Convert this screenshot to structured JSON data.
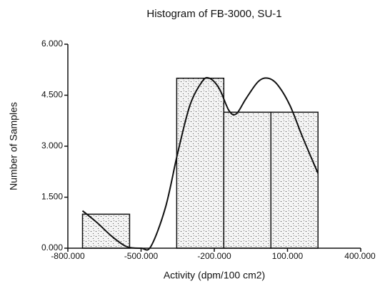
{
  "chart_data": {
    "type": "histogram",
    "title": "Histogram of FB-3000, SU-1",
    "x_label": "Activity (dpm/100 cm2)",
    "y_label": "Number of Samples",
    "bins": [
      -740,
      -547,
      -354,
      -161,
      32,
      225
    ],
    "counts": [
      1,
      0,
      5,
      4,
      4
    ],
    "color": "#e6e6e6",
    "curve": {
      "x": [
        -740,
        -680,
        -620,
        -560,
        -500,
        -460,
        -400,
        -350,
        -300,
        -250,
        -220,
        -180,
        -140,
        -110,
        -70,
        -20,
        20,
        60,
        110,
        160,
        225
      ],
      "y": [
        1.1,
        0.75,
        0.35,
        0.05,
        0,
        0.05,
        1.2,
        2.8,
        4.2,
        4.9,
        5.0,
        4.7,
        4.05,
        3.95,
        4.4,
        4.9,
        5.0,
        4.8,
        4.2,
        3.3,
        2.2
      ]
    },
    "xlim": [
      -800,
      400
    ],
    "xticks": [
      {
        "value": -800,
        "label": "-800.000"
      },
      {
        "value": -500,
        "label": "-500.000"
      },
      {
        "value": -200,
        "label": "-200.000"
      },
      {
        "value": 100,
        "label": "100.000"
      },
      {
        "value": 400,
        "label": "400.000"
      }
    ],
    "ylim": [
      0,
      6
    ],
    "yticks": [
      {
        "value": 0,
        "label": "0.000"
      },
      {
        "value": 1.5,
        "label": "1.500"
      },
      {
        "value": 3,
        "label": "3.000"
      },
      {
        "value": 4.5,
        "label": "4.500"
      },
      {
        "value": 6,
        "label": "6.000"
      }
    ]
  }
}
